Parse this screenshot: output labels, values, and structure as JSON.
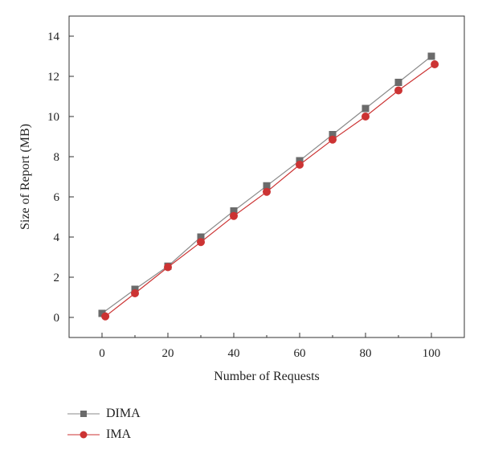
{
  "chart_data": {
    "type": "line",
    "xlabel": "Number of Requests",
    "ylabel": "Size of Report (MB)",
    "xlim": [
      -10,
      110
    ],
    "ylim": [
      -1,
      15
    ],
    "xticks": [
      0,
      20,
      40,
      60,
      80,
      100
    ],
    "yticks": [
      0,
      2,
      4,
      6,
      8,
      10,
      12,
      14
    ],
    "grid": false,
    "legend_position": "bottom-left",
    "series": [
      {
        "name": "DIMA",
        "marker": "square",
        "color": "#6b6b6b",
        "line_color": "#8a8a8a",
        "x": [
          0,
          10,
          20,
          30,
          40,
          50,
          60,
          70,
          80,
          90,
          100
        ],
        "y": [
          0.2,
          1.4,
          2.55,
          4.0,
          5.3,
          6.55,
          7.8,
          9.1,
          10.4,
          11.7,
          13.0
        ]
      },
      {
        "name": "IMA",
        "marker": "circle",
        "color": "#cc3333",
        "line_color": "#cc3333",
        "x": [
          1,
          10,
          20,
          30,
          40,
          50,
          60,
          70,
          80,
          90,
          101
        ],
        "y": [
          0.05,
          1.2,
          2.5,
          3.75,
          5.05,
          6.25,
          7.6,
          8.85,
          10.0,
          11.3,
          12.6
        ]
      }
    ]
  }
}
